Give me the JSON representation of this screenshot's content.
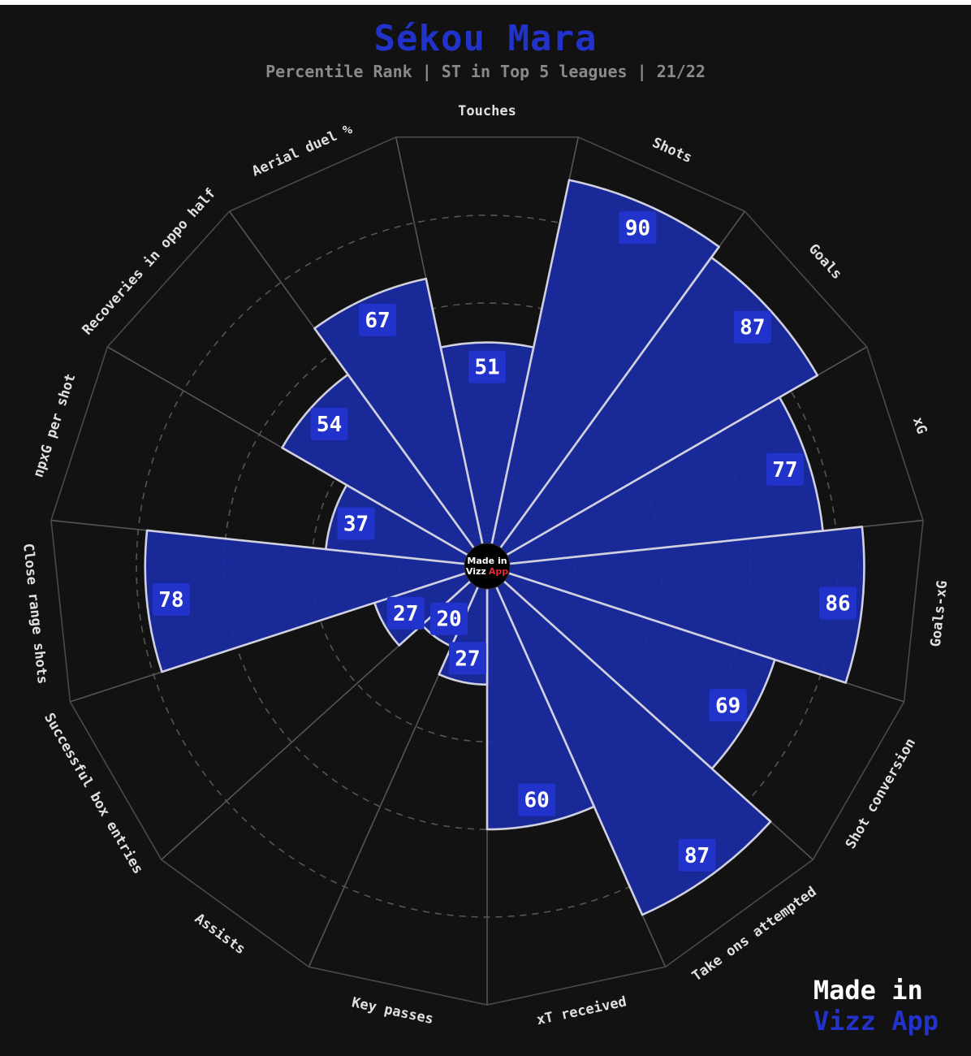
{
  "title": "Sékou Mara",
  "subtitle": "Percentile Rank | ST in Top 5 leagues | 21/22",
  "brand": {
    "line1": "Made in",
    "line2": "Vizz App"
  },
  "center_badge": {
    "line1": "Made in",
    "line2_a": "Vizz",
    "line2_b": "App"
  },
  "colors": {
    "background": "#121212",
    "bar_fill": "#1a2ba0",
    "bar_edge": "#d0d0e0",
    "label_box": "#2233cc",
    "title": "#2233cc",
    "accent_red": "#e8283c"
  },
  "chart_data": {
    "type": "radial-bar",
    "title": "Sékou Mara",
    "subtitle": "Percentile Rank | ST in Top 5 leagues | 21/22",
    "rlim": [
      0,
      100
    ],
    "categories": [
      "Touches",
      "Shots",
      "Goals",
      "xG",
      "Goals-xG",
      "Shot conversion",
      "Take ons attempted",
      "xT received",
      "Key passes",
      "Assists",
      "Successful box entries",
      "Close range shots",
      "npxG per shot",
      "Recoveries in oppo half",
      "Aerial duel %"
    ],
    "values": [
      51,
      90,
      87,
      77,
      86,
      69,
      87,
      60,
      27,
      20,
      27,
      78,
      37,
      54,
      67
    ],
    "grid": true
  }
}
